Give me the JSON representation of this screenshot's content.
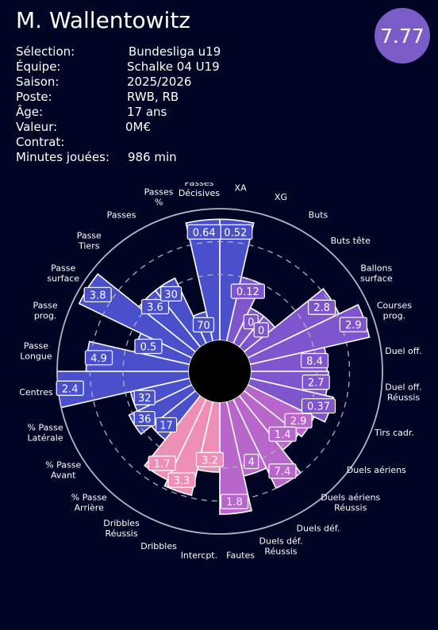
{
  "player": {
    "name": "M. Wallentowitz",
    "rating": "7.77",
    "info": [
      {
        "label": "Sélection:",
        "value": "Bundesliga u19"
      },
      {
        "label": "Équipe:",
        "value": "Schalke 04 U19"
      },
      {
        "label": "Saison:",
        "value": "2025/2026"
      },
      {
        "label": "Poste:",
        "value": "RWB, RB"
      },
      {
        "label": "Âge:",
        "value": "17 ans"
      },
      {
        "label": "Valeur:",
        "value": "0M€"
      },
      {
        "label": "Contrat:",
        "value": ""
      },
      {
        "label": "Minutes jouées:",
        "value": "986 min"
      }
    ]
  },
  "colors": {
    "background": "#020424",
    "rating_badge": "#7b5cc9",
    "possession": "#4a4fcb",
    "attack": "#7e55cc",
    "duels": "#b866cc",
    "defense": "#f08fb6",
    "ring": "#b4b4c4"
  },
  "chart_data": {
    "type": "radar-bar",
    "scale": "percentile",
    "rlim": [
      0,
      100
    ],
    "categories": [
      {
        "label": "XA",
        "value": "0.52",
        "percentile": 92,
        "group": "possession"
      },
      {
        "label": "XG",
        "value": "0.12",
        "percentile": 50,
        "group": "attack"
      },
      {
        "label": "Buts",
        "value": "0",
        "percentile": 30,
        "group": "attack"
      },
      {
        "label": "Buts tête",
        "value": "0",
        "percentile": 30,
        "group": "attack"
      },
      {
        "label": "Ballons\nsurface",
        "value": "2.8",
        "percentile": 77,
        "group": "attack"
      },
      {
        "label": "Courses\nprog.",
        "value": "2.9",
        "percentile": 93,
        "group": "attack"
      },
      {
        "label": "Duel off.",
        "value": "8.4",
        "percentile": 58,
        "group": "attack"
      },
      {
        "label": "Duel off.\nRéussis",
        "value": "2.7",
        "percentile": 59,
        "group": "attack"
      },
      {
        "label": "Tirs cadr.",
        "value": "0.37",
        "percentile": 65,
        "group": "attack"
      },
      {
        "label": "Duels aériens",
        "value": "2.9",
        "percentile": 56,
        "group": "duels"
      },
      {
        "label": "Duels aériens\nRéussis",
        "value": "1.4",
        "percentile": 53,
        "group": "duels"
      },
      {
        "label": "Duels déf.",
        "value": "7.4",
        "percentile": 75,
        "group": "duels"
      },
      {
        "label": "Duels déf.\nRéussis",
        "value": "4",
        "percentile": 58,
        "group": "duels"
      },
      {
        "label": "Fautes",
        "value": "1.8",
        "percentile": 85,
        "group": "duels"
      },
      {
        "label": "Intercpt.",
        "value": "3.2",
        "percentile": 53,
        "group": "defense"
      },
      {
        "label": "Dribbles",
        "value": "3.3",
        "percentile": 73,
        "group": "defense"
      },
      {
        "label": "Dribbles\nRéussis",
        "value": "1.7",
        "percentile": 68,
        "group": "defense"
      },
      {
        "label": "% Passe\nArrière",
        "value": "17",
        "percentile": 43,
        "group": "possession"
      },
      {
        "label": "% Passe\nAvant",
        "value": "36",
        "percentile": 53,
        "group": "possession"
      },
      {
        "label": "% Passe\nLatérale",
        "value": "32",
        "percentile": 46,
        "group": "possession"
      },
      {
        "label": "Centres",
        "value": "2.4",
        "percentile": 100,
        "group": "possession"
      },
      {
        "label": "Passe\nLongue",
        "value": "4.9",
        "percentile": 78,
        "group": "possession"
      },
      {
        "label": "Passe\nprog.",
        "value": "0.5",
        "percentile": 43,
        "group": "possession"
      },
      {
        "label": "Passe\nsurface",
        "value": "3.8",
        "percentile": 95,
        "group": "possession"
      },
      {
        "label": "Passe\nTiers",
        "value": "3.6",
        "percentile": 55,
        "group": "possession"
      },
      {
        "label": "Passes",
        "value": "30",
        "percentile": 55,
        "group": "possession"
      },
      {
        "label": "Passes\n%",
        "value": "70",
        "percentile": 23,
        "group": "possession"
      },
      {
        "label": "Passes\nDécisives",
        "value": "0.64",
        "percentile": 92,
        "group": "possession"
      }
    ]
  }
}
